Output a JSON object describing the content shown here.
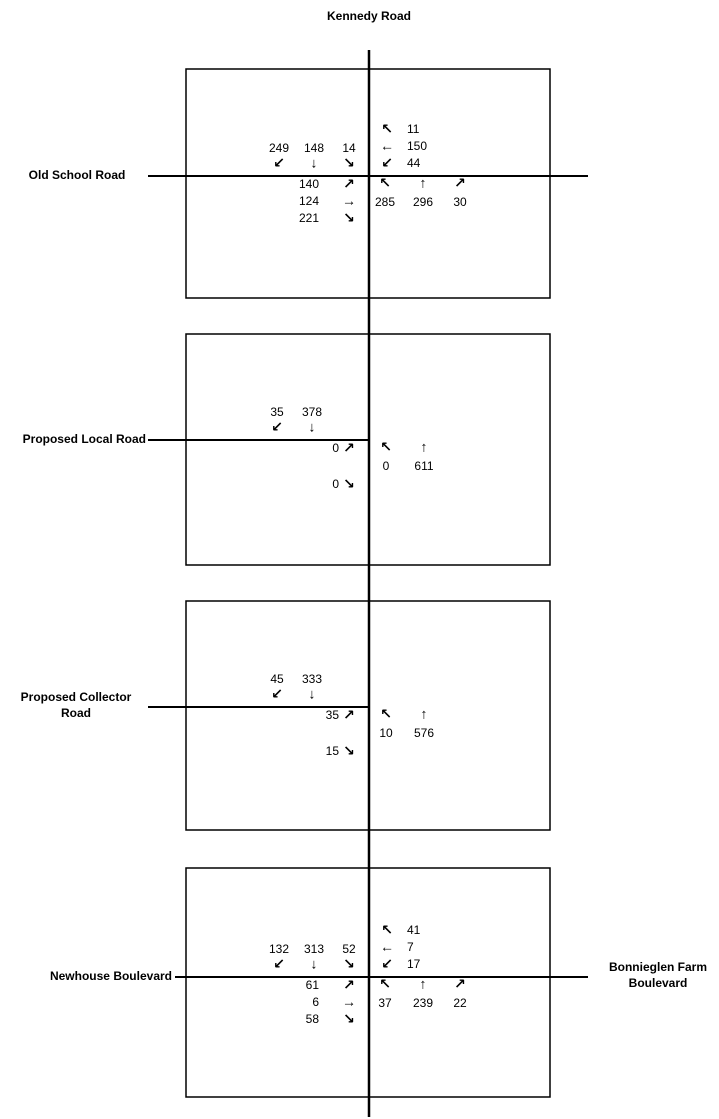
{
  "main_road": "Kennedy Road",
  "intersections": [
    {
      "west_road": [
        "Old School Road"
      ],
      "east_road": [],
      "southbound": {
        "right": "249",
        "through": "148",
        "left": "14"
      },
      "westbound": {
        "right": "11",
        "through": "150",
        "left": "44"
      },
      "eastbound": {
        "left": "140",
        "through": "124",
        "right": "221"
      },
      "northbound": {
        "left": "285",
        "through": "296",
        "right": "30"
      }
    },
    {
      "west_road": [
        "Proposed Local Road"
      ],
      "east_road": [],
      "southbound": {
        "right": "35",
        "through": "378"
      },
      "eastbound": {
        "left": "0",
        "right": "0"
      },
      "northbound": {
        "left": "0",
        "through": "611"
      }
    },
    {
      "west_road": [
        "Proposed Collector",
        "Road"
      ],
      "east_road": [],
      "southbound": {
        "right": "45",
        "through": "333"
      },
      "eastbound": {
        "left": "35",
        "right": "15"
      },
      "northbound": {
        "left": "10",
        "through": "576"
      }
    },
    {
      "west_road": [
        "Newhouse Boulevard"
      ],
      "east_road": [
        "Bonnieglen Farm",
        "Boulevard"
      ],
      "southbound": {
        "right": "132",
        "through": "313",
        "left": "52"
      },
      "westbound": {
        "right": "41",
        "through": "7",
        "left": "17"
      },
      "eastbound": {
        "left": "61",
        "through": "6",
        "right": "58"
      },
      "northbound": {
        "left": "37",
        "through": "239",
        "right": "22"
      }
    }
  ],
  "icons": {
    "southbound-right": "↙",
    "southbound-through": "↓",
    "southbound-left": "↘",
    "westbound-right": "↖",
    "westbound-through": "←",
    "westbound-left": "↙",
    "eastbound-left": "↗",
    "eastbound-through": "→",
    "eastbound-right": "↘",
    "northbound-left": "↖",
    "northbound-through": "↑",
    "northbound-right": "↗"
  }
}
